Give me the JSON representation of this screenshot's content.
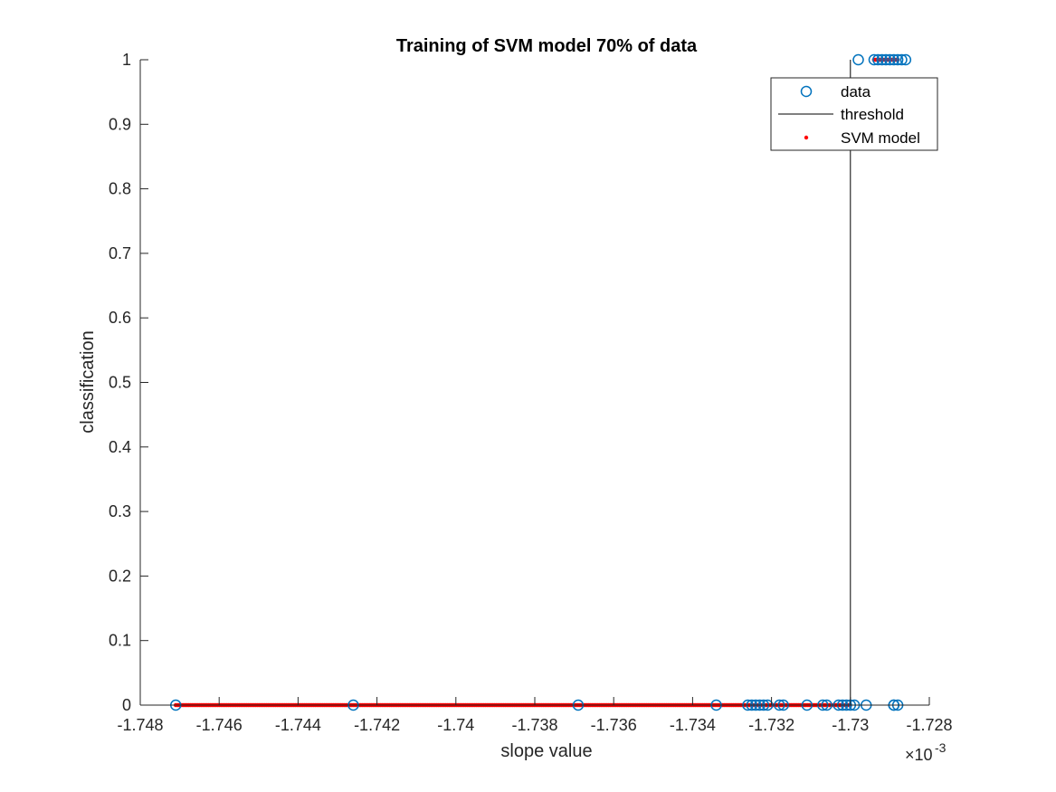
{
  "chart_data": {
    "type": "scatter",
    "title": "Training of SVM model 70% of data",
    "xlabel": "slope value",
    "ylabel": "classification",
    "x_exponent_label": "×10",
    "x_exponent_power": "-3",
    "xlim": [
      -1.748,
      -1.728
    ],
    "ylim": [
      0,
      1
    ],
    "xticks": [
      -1.748,
      -1.746,
      -1.744,
      -1.742,
      -1.74,
      -1.738,
      -1.736,
      -1.734,
      -1.732,
      -1.73,
      -1.728
    ],
    "xtick_labels": [
      "-1.748",
      "-1.746",
      "-1.744",
      "-1.742",
      "-1.74",
      "-1.738",
      "-1.736",
      "-1.734",
      "-1.732",
      "-1.73",
      "-1.728"
    ],
    "yticks": [
      0,
      0.1,
      0.2,
      0.3,
      0.4,
      0.5,
      0.6,
      0.7,
      0.8,
      0.9,
      1
    ],
    "ytick_labels": [
      "0",
      "0.1",
      "0.2",
      "0.3",
      "0.4",
      "0.5",
      "0.6",
      "0.7",
      "0.8",
      "0.9",
      "1"
    ],
    "grid": false,
    "legend_position": "top-right",
    "colors": {
      "data": "#0072bd",
      "threshold": "#000000",
      "svm": "#ff0000",
      "axis": "#262626"
    },
    "threshold_x": -1.73,
    "series": [
      {
        "name": "data",
        "style": "circle",
        "x": [
          -1.7471,
          -1.7426,
          -1.7369,
          -1.7334,
          -1.7326,
          -1.7325,
          -1.7324,
          -1.7323,
          -1.7322,
          -1.7321,
          -1.7318,
          -1.7317,
          -1.7311,
          -1.7307,
          -1.7306,
          -1.7303,
          -1.7302,
          -1.7301,
          -1.73,
          -1.7299,
          -1.7296,
          -1.7289,
          -1.7289,
          -1.7288,
          -1.7298,
          -1.7294,
          -1.7293,
          -1.7292,
          -1.7291,
          -1.729,
          -1.7289,
          -1.7288,
          -1.7287,
          -1.7286
        ],
        "y": [
          0,
          0,
          0,
          0,
          0,
          0,
          0,
          0,
          0,
          0,
          0,
          0,
          0,
          0,
          0,
          0,
          0,
          0,
          0,
          0,
          0,
          0,
          0,
          0,
          1,
          1,
          1,
          1,
          1,
          1,
          1,
          1,
          1,
          1
        ]
      },
      {
        "name": "threshold",
        "style": "line",
        "x": [
          -1.73,
          -1.73
        ],
        "y": [
          0,
          1
        ]
      },
      {
        "name": "SVM model",
        "style": "dots",
        "x_ranges": [
          [
            -1.7471,
            -1.73
          ],
          [
            -1.7294,
            -1.7288
          ]
        ],
        "y_values": [
          0,
          1
        ]
      }
    ]
  }
}
